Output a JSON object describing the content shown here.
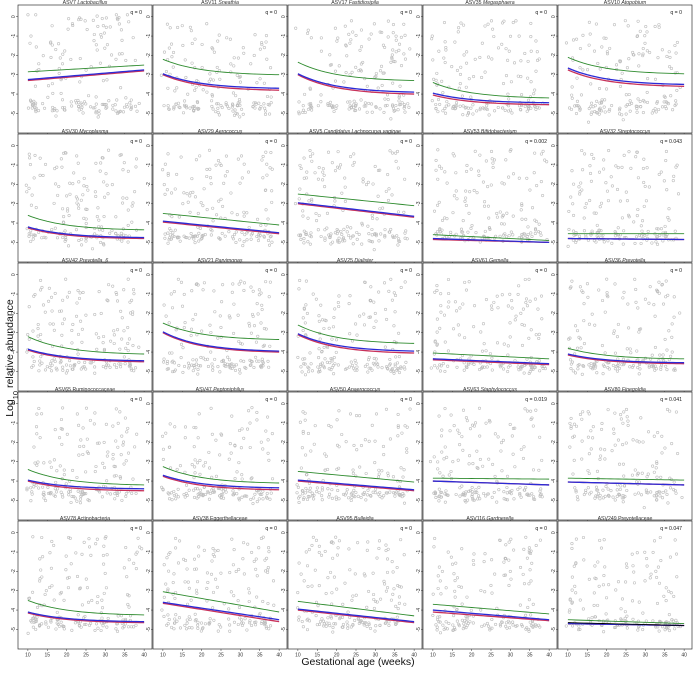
{
  "chart_data": {
    "type": "scatter",
    "x_axis_label": "Gestational age (weeks)",
    "y_axis_label_prefix": "Log",
    "y_axis_label_subscript": "10",
    "y_axis_label_suffix": " relative abundance",
    "x_ticks": [
      10,
      15,
      20,
      25,
      30,
      35,
      40
    ],
    "xlim": [
      9,
      41
    ],
    "y_ticks": [
      0,
      -1,
      -2,
      -3,
      -4,
      -5
    ],
    "y_tick_labels": [
      "0",
      "-1",
      "-2",
      "-3",
      "-4",
      "-5"
    ],
    "ylim": [
      -5.6,
      0.4
    ],
    "point_color": "#bdbdbd",
    "line_colors": {
      "green": "#2e8b2e",
      "blue": "#2b2bd6",
      "red": "#c8325a",
      "black": "#000000"
    },
    "panels": [
      {
        "id": "ASV7",
        "genus": "Lactobacillus",
        "italic": true,
        "q": "q = 0",
        "green": [
          -2.85,
          -2.5
        ],
        "blue": [
          -3.25,
          -2.75
        ],
        "red": [
          -3.3,
          -2.8
        ],
        "shape": "linear"
      },
      {
        "id": "ASV11",
        "genus": "Sneathia",
        "italic": true,
        "q": "q = 0",
        "green": [
          -2.2,
          -3.0
        ],
        "blue": [
          -2.95,
          -3.7
        ],
        "red": [
          -3.0,
          -3.8
        ],
        "shape": "decay"
      },
      {
        "id": "ASV17",
        "genus": "Fastidiosipila",
        "italic": true,
        "q": "q = 0",
        "green": [
          -2.35,
          -3.3
        ],
        "blue": [
          -2.95,
          -3.9
        ],
        "red": [
          -3.0,
          -4.0
        ],
        "shape": "decay"
      },
      {
        "id": "ASV35",
        "genus": "Megasphaera",
        "italic": true,
        "q": "q = 0",
        "green": [
          -3.4,
          -4.2
        ],
        "blue": [
          -3.95,
          -4.45
        ],
        "red": [
          -4.05,
          -4.55
        ],
        "shape": "decay"
      },
      {
        "id": "ASV10",
        "genus": "Atopobium",
        "italic": true,
        "q": "q = 0",
        "green": [
          -2.1,
          -2.95
        ],
        "blue": [
          -2.65,
          -3.5
        ],
        "red": [
          -2.75,
          -3.6
        ],
        "shape": "decay"
      },
      {
        "id": "ASV30",
        "genus": "Mycoplasma",
        "italic": true,
        "q": "q = 0",
        "green": [
          -3.6,
          -4.35
        ],
        "blue": [
          -4.2,
          -4.75
        ],
        "red": [
          -4.25,
          -4.8
        ],
        "shape": "decay"
      },
      {
        "id": "ASV29",
        "genus": "Aerococcus",
        "italic": true,
        "q": "q = 0",
        "green": [
          -3.5,
          -4.1
        ],
        "blue": [
          -3.9,
          -4.5
        ],
        "red": [
          -3.95,
          -4.55
        ],
        "shape": "linear"
      },
      {
        "id": "ASV5",
        "genus": "Candidatus Lachnocurva vaginae",
        "italic": true,
        "q": "q = 0",
        "green": [
          -2.5,
          -3.1
        ],
        "blue": [
          -2.95,
          -3.65
        ],
        "red": [
          -3.0,
          -3.7
        ],
        "shape": "linear"
      },
      {
        "id": "ASV53",
        "genus": "Bifidobacterium",
        "italic": true,
        "q": "q = 0.002",
        "green": [
          -4.6,
          -4.9
        ],
        "blue": [
          -4.8,
          -5.0
        ],
        "red": [
          -4.85,
          -5.0
        ],
        "shape": "linear"
      },
      {
        "id": "ASV32",
        "genus": "Streptococcus",
        "italic": true,
        "q": "q = 0.043",
        "green": [
          -4.55,
          -4.55
        ],
        "blue": [
          -4.8,
          -4.85
        ],
        "red": [
          -4.8,
          -4.85
        ],
        "shape": "linear"
      },
      {
        "id": "ASV42",
        "genus": "Prevotella_6",
        "italic": true,
        "q": "q = 0",
        "green": [
          -3.2,
          -4.1
        ],
        "blue": [
          -3.85,
          -4.45
        ],
        "red": [
          -3.9,
          -4.5
        ],
        "shape": "decay"
      },
      {
        "id": "ASV21",
        "genus": "Parvimonas",
        "italic": true,
        "q": "q = 0",
        "green": [
          -2.5,
          -3.35
        ],
        "blue": [
          -2.95,
          -3.95
        ],
        "red": [
          -3.0,
          -4.0
        ],
        "shape": "decay"
      },
      {
        "id": "ASV25",
        "genus": "Dialister",
        "italic": true,
        "q": "q = 0",
        "green": [
          -2.6,
          -3.55
        ],
        "blue": [
          -3.05,
          -3.95
        ],
        "red": [
          -3.1,
          -4.05
        ],
        "shape": "decay"
      },
      {
        "id": "ASV61",
        "genus": "Gemella",
        "italic": true,
        "q": "q = 0",
        "green": [
          -4.05,
          -4.35
        ],
        "blue": [
          -4.35,
          -4.6
        ],
        "red": [
          -4.4,
          -4.65
        ],
        "shape": "linear"
      },
      {
        "id": "ASV36",
        "genus": "Prevotella",
        "italic": true,
        "q": "q = 0",
        "green": [
          -3.8,
          -4.35
        ],
        "blue": [
          -4.1,
          -4.55
        ],
        "red": [
          -4.15,
          -4.6
        ],
        "shape": "decay"
      },
      {
        "id": "ASV65",
        "genus": "Ruminococcaceae",
        "italic": false,
        "q": "q = 0",
        "green": [
          -3.4,
          -4.2
        ],
        "blue": [
          -3.95,
          -4.4
        ],
        "red": [
          -4.0,
          -4.5
        ],
        "shape": "decay"
      },
      {
        "id": "ASV47",
        "genus": "Peptoniphilus",
        "italic": true,
        "q": "q = 0",
        "green": [
          -3.25,
          -4.1
        ],
        "blue": [
          -3.7,
          -4.35
        ],
        "red": [
          -3.75,
          -4.45
        ],
        "shape": "decay"
      },
      {
        "id": "ASV50",
        "genus": "Anaerococcus",
        "italic": true,
        "q": "q = 0",
        "green": [
          -3.5,
          -4.05
        ],
        "blue": [
          -3.95,
          -4.45
        ],
        "red": [
          -4.0,
          -4.5
        ],
        "shape": "linear"
      },
      {
        "id": "ASV63",
        "genus": "Staphylococcus",
        "italic": true,
        "q": "q = 0.019",
        "green": [
          -3.85,
          -3.9
        ],
        "blue": [
          -4.0,
          -4.2
        ],
        "red": [
          -4.0,
          -4.2
        ],
        "shape": "linear"
      },
      {
        "id": "ASV80",
        "genus": "Finegoldia",
        "italic": true,
        "q": "q = 0.041",
        "green": [
          -3.85,
          -3.95
        ],
        "blue": [
          -4.05,
          -4.2
        ],
        "red": [
          -4.05,
          -4.2
        ],
        "shape": "linear"
      },
      {
        "id": "ASV78",
        "genus": "Actinobacteria",
        "italic": false,
        "q": "q = 0",
        "green": [
          -3.5,
          -4.25
        ],
        "blue": [
          -4.1,
          -4.6
        ],
        "red": [
          -4.15,
          -4.65
        ],
        "shape": "decay"
      },
      {
        "id": "ASV38",
        "genus": "Eggerthellaceae",
        "italic": false,
        "q": "q = 0",
        "green": [
          -3.05,
          -4.1
        ],
        "blue": [
          -3.6,
          -4.5
        ],
        "red": [
          -3.65,
          -4.6
        ],
        "shape": "linear"
      },
      {
        "id": "ASV95",
        "genus": "Bulleidia",
        "italic": true,
        "q": "q = 0",
        "green": [
          -3.55,
          -4.3
        ],
        "blue": [
          -3.95,
          -4.6
        ],
        "red": [
          -4.0,
          -4.65
        ],
        "shape": "linear"
      },
      {
        "id": "ASV116",
        "genus": "Gardnerella",
        "italic": true,
        "q": "q = 0",
        "green": [
          -3.7,
          -4.2
        ],
        "blue": [
          -4.0,
          -4.5
        ],
        "red": [
          -4.1,
          -4.55
        ],
        "shape": "linear"
      },
      {
        "id": "ASV249",
        "genus": "Prevotellaceae",
        "italic": false,
        "q": "q = 0.047",
        "green": [
          -4.5,
          -4.7
        ],
        "blue": [
          -4.7,
          -4.8
        ],
        "red": [
          -4.7,
          -4.8
        ],
        "black": [
          -4.65,
          -4.8
        ],
        "shape": "linear"
      }
    ]
  }
}
